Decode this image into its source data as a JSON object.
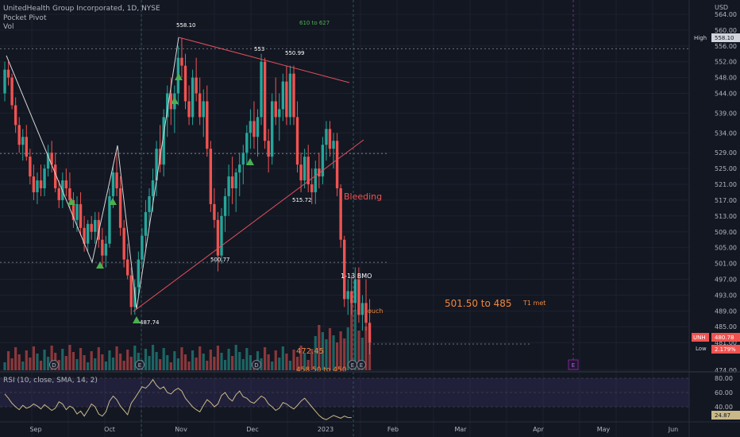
{
  "header": {
    "title": "UnitedHealth Group Incorporated, 1D, NYSE",
    "indicator": "Pocket Pivot",
    "volume": "Vol"
  },
  "rsi_pane": {
    "label": "RSI (10, close, SMA, 14, 2)",
    "ticks": [
      "80.00",
      "60.00",
      "40.00"
    ],
    "value_tag": "24.87"
  },
  "price_scale": {
    "currency": "USD",
    "ticks": [
      "564.00",
      "560.00",
      "556.00",
      "552.00",
      "548.00",
      "544.00",
      "539.00",
      "534.00",
      "529.00",
      "525.00",
      "521.00",
      "517.00",
      "513.00",
      "509.00",
      "505.00",
      "501.00",
      "497.00",
      "493.00",
      "489.00",
      "485.00",
      "481.00",
      "474.00"
    ],
    "tags": {
      "high_label": "High",
      "high_value": "558.10",
      "sym_label": "UNH",
      "sym_value": "480.78",
      "low_label": "Low",
      "low_value": "2.179%"
    }
  },
  "time_axis": [
    "Sep",
    "Oct",
    "Nov",
    "Dec",
    "2023",
    "Feb",
    "Mar",
    "Apr",
    "May",
    "Jun"
  ],
  "event_markers": [
    "D",
    "E",
    "D",
    "E",
    "E"
  ],
  "future_marker": "E",
  "annotations": {
    "p558": "558.10",
    "range_610": "610 to 627",
    "p553": "553",
    "p550": "550.99",
    "p515": "515.72",
    "p500": "500.77",
    "p487": "487.74",
    "bleeding": "Bleeding",
    "bmo": "1-13 BMO",
    "ouch": "ouch",
    "target": "501.50 to 485",
    "t1": "T1 met",
    "p472": "472.45",
    "range_458": "458.50 to 450"
  },
  "colors": {
    "background": "#131722",
    "up": "#26a69a",
    "down": "#ef5350",
    "trendline": "#e0505c",
    "zigzag": "#d6d6d6",
    "pivot": "#4caf50",
    "annotation_orange": "#f0883e",
    "annotation_green": "#4caf50",
    "rsi_line": "#c9b988"
  },
  "chart_data": {
    "type": "candlestick",
    "symbol": "UNH",
    "timeframe": "1D",
    "x_type": "trading-day index (Aug 2022 - Jan 2023)",
    "ylim": [
      474,
      566
    ],
    "candles": [
      [
        544,
        552,
        542,
        550
      ],
      [
        550,
        552,
        546,
        548
      ],
      [
        548,
        549,
        540,
        541
      ],
      [
        541,
        543,
        534,
        536
      ],
      [
        536,
        538,
        529,
        531
      ],
      [
        531,
        535,
        527,
        533
      ],
      [
        533,
        536,
        527,
        528
      ],
      [
        528,
        530,
        521,
        523
      ],
      [
        523,
        526,
        517,
        519
      ],
      [
        519,
        524,
        516,
        522
      ],
      [
        522,
        526,
        518,
        520
      ],
      [
        520,
        526,
        518,
        525
      ],
      [
        525,
        531,
        523,
        529
      ],
      [
        529,
        532,
        524,
        526
      ],
      [
        526,
        529,
        519,
        520
      ],
      [
        520,
        522,
        515,
        517
      ],
      [
        517,
        524,
        515,
        522
      ],
      [
        522,
        525,
        518,
        520
      ],
      [
        520,
        524,
        515,
        517
      ],
      [
        517,
        519,
        510,
        512
      ],
      [
        512,
        518,
        509,
        516
      ],
      [
        516,
        519,
        508,
        510
      ],
      [
        510,
        513,
        504,
        506
      ],
      [
        506,
        512,
        504,
        511
      ],
      [
        511,
        513,
        507,
        509
      ],
      [
        509,
        514,
        506,
        512
      ],
      [
        512,
        514,
        505,
        507
      ],
      [
        507,
        510,
        500,
        503
      ],
      [
        503,
        508,
        500,
        506
      ],
      [
        506,
        520,
        505,
        518
      ],
      [
        518,
        526,
        515,
        524
      ],
      [
        524,
        529,
        518,
        520
      ],
      [
        520,
        523,
        508,
        510
      ],
      [
        510,
        512,
        500,
        502
      ],
      [
        502,
        506,
        497,
        498
      ],
      [
        498,
        500,
        488,
        490
      ],
      [
        490,
        497,
        488,
        495
      ],
      [
        495,
        504,
        493,
        502
      ],
      [
        502,
        510,
        500,
        508
      ],
      [
        508,
        517,
        505,
        514
      ],
      [
        514,
        520,
        510,
        518
      ],
      [
        518,
        525,
        514,
        522
      ],
      [
        522,
        532,
        518,
        530
      ],
      [
        530,
        536,
        524,
        526
      ],
      [
        526,
        540,
        523,
        538
      ],
      [
        538,
        546,
        533,
        544
      ],
      [
        544,
        548,
        536,
        540
      ],
      [
        540,
        546,
        534,
        544
      ],
      [
        544,
        556,
        541,
        553
      ],
      [
        553,
        558,
        548,
        551
      ],
      [
        551,
        554,
        540,
        542
      ],
      [
        542,
        546,
        536,
        538
      ],
      [
        538,
        550,
        536,
        548
      ],
      [
        548,
        553,
        542,
        544
      ],
      [
        544,
        548,
        536,
        538
      ],
      [
        538,
        545,
        533,
        542
      ],
      [
        542,
        546,
        528,
        530
      ],
      [
        530,
        532,
        514,
        516
      ],
      [
        516,
        520,
        510,
        512
      ],
      [
        512,
        514,
        499,
        503
      ],
      [
        503,
        515,
        501,
        513
      ],
      [
        513,
        520,
        509,
        518
      ],
      [
        518,
        526,
        513,
        523
      ],
      [
        523,
        528,
        516,
        520
      ],
      [
        520,
        525,
        514,
        524
      ],
      [
        524,
        529,
        518,
        526
      ],
      [
        526,
        531,
        521,
        529
      ],
      [
        529,
        536,
        526,
        534
      ],
      [
        534,
        540,
        530,
        537
      ],
      [
        537,
        542,
        530,
        533
      ],
      [
        533,
        540,
        528,
        538
      ],
      [
        538,
        554,
        536,
        552
      ],
      [
        552,
        553,
        530,
        532
      ],
      [
        532,
        535,
        524,
        528
      ],
      [
        528,
        544,
        526,
        542
      ],
      [
        542,
        548,
        536,
        538
      ],
      [
        538,
        544,
        532,
        540
      ],
      [
        540,
        549,
        537,
        547
      ],
      [
        547,
        551,
        536,
        538
      ],
      [
        538,
        551,
        536,
        549
      ],
      [
        549,
        551,
        536,
        538
      ],
      [
        538,
        542,
        524,
        526
      ],
      [
        526,
        529,
        519,
        522
      ],
      [
        522,
        530,
        520,
        528
      ],
      [
        528,
        531,
        519,
        521
      ],
      [
        521,
        525,
        516,
        519
      ],
      [
        519,
        527,
        516,
        525
      ],
      [
        525,
        529,
        520,
        523
      ],
      [
        523,
        533,
        521,
        531
      ],
      [
        531,
        537,
        527,
        535
      ],
      [
        535,
        537,
        528,
        530
      ],
      [
        530,
        534,
        525,
        532
      ],
      [
        532,
        534,
        518,
        520
      ],
      [
        520,
        521,
        505,
        507
      ],
      [
        507,
        508,
        490,
        492
      ],
      [
        492,
        497,
        488,
        494
      ],
      [
        494,
        498,
        488,
        491
      ],
      [
        491,
        500,
        489,
        497
      ],
      [
        497,
        500,
        486,
        488
      ],
      [
        488,
        493,
        484,
        491
      ],
      [
        491,
        497,
        484,
        486
      ],
      [
        486,
        492,
        478,
        481
      ]
    ],
    "volume_note": "volume histogram shown beneath price",
    "rsi": {
      "label": "RSI (10, close, SMA, 14, 2)",
      "levels": [
        80,
        60,
        40
      ],
      "last": 24.87
    }
  }
}
